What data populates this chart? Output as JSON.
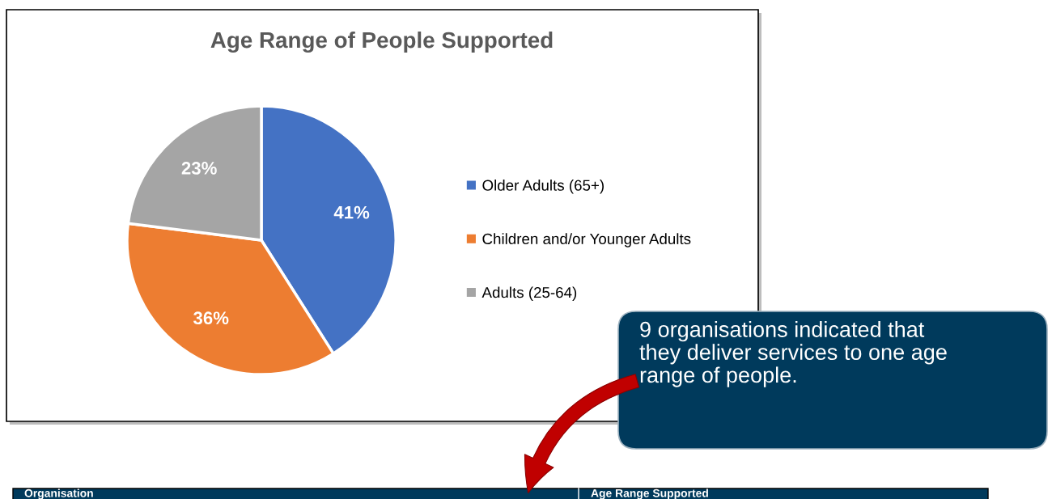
{
  "chart_data": {
    "type": "pie",
    "title": "Age Range of People Supported",
    "categories": [
      "Older Adults (65+)",
      "Children and/or Younger Adults",
      "Adults (25-64)"
    ],
    "values": [
      41,
      36,
      23
    ],
    "colors": [
      "#4472c4",
      "#ed7d31",
      "#a5a5a5"
    ],
    "value_labels": [
      "41%",
      "36%",
      "23%"
    ],
    "legend": "right",
    "annotations": [
      "9 organisations indicated that\nthey deliver services to one age\nrange of people.",
      "Organisation",
      "Age Range Supported"
    ]
  }
}
